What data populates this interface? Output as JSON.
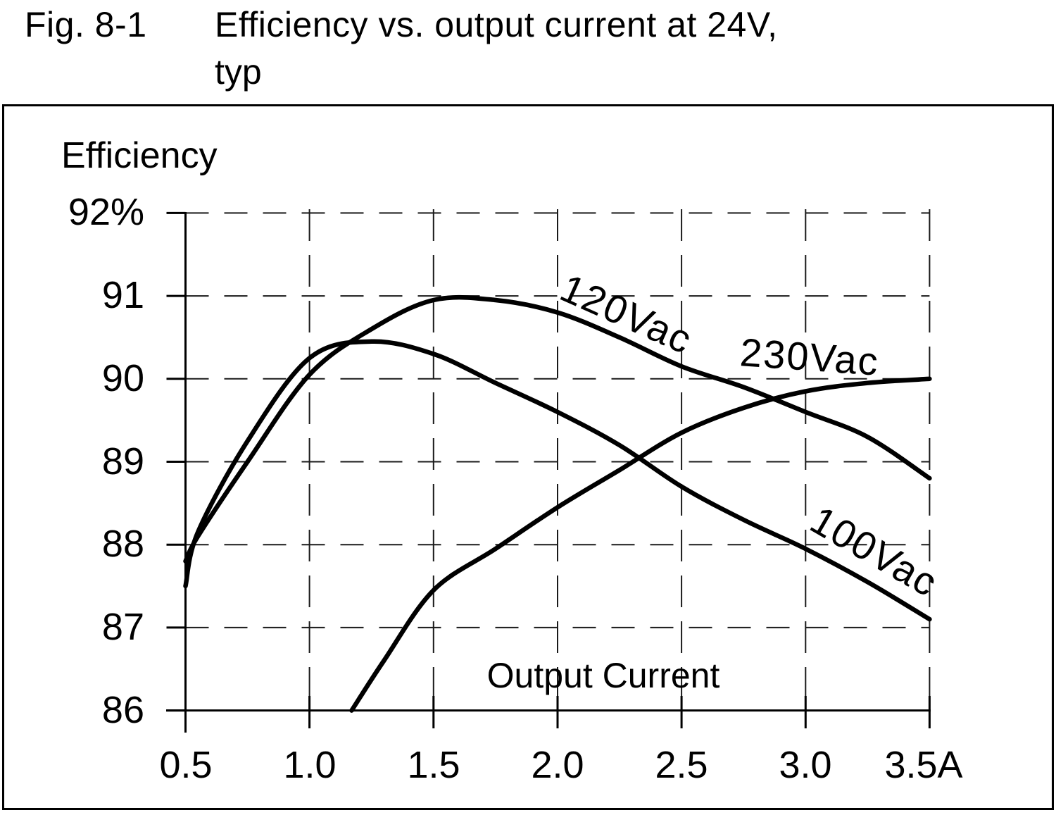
{
  "figure": {
    "fig_label": "Fig. 8-1",
    "title_line1": "Efficiency vs. output current at 24V,",
    "title_line2": "typ"
  },
  "chart_data": {
    "type": "line",
    "title": "Efficiency vs. output current at 24V, typ",
    "ylabel": "Efficiency",
    "xlabel": "Output Current",
    "xlim": [
      0.5,
      3.5
    ],
    "ylim": [
      86,
      92
    ],
    "x_unit": "A",
    "y_unit": "%",
    "grid": "dashed",
    "legend_position": "inline-rotated-labels",
    "line_color": "#000000",
    "x_ticks": [
      0.5,
      1.0,
      1.5,
      2.0,
      2.5,
      3.0,
      3.5
    ],
    "x_tick_labels": [
      "0.5",
      "1.0",
      "1.5",
      "2.0",
      "2.5",
      "3.0",
      "3.5A"
    ],
    "y_ticks": [
      86,
      87,
      88,
      89,
      90,
      91,
      92
    ],
    "y_tick_labels": [
      "86",
      "87",
      "88",
      "89",
      "90",
      "91",
      "92%"
    ],
    "series": [
      {
        "name": "120Vac",
        "points": [
          [
            0.5,
            87.8
          ],
          [
            0.55,
            88.1
          ],
          [
            0.75,
            89.0
          ],
          [
            1.0,
            90.05
          ],
          [
            1.25,
            90.6
          ],
          [
            1.5,
            90.95
          ],
          [
            1.75,
            90.95
          ],
          [
            2.0,
            90.8
          ],
          [
            2.25,
            90.5
          ],
          [
            2.5,
            90.15
          ],
          [
            2.75,
            89.9
          ],
          [
            3.0,
            89.6
          ],
          [
            3.25,
            89.3
          ],
          [
            3.5,
            88.8
          ]
        ]
      },
      {
        "name": "230Vac",
        "points": [
          [
            1.17,
            86.0
          ],
          [
            1.3,
            86.6
          ],
          [
            1.5,
            87.45
          ],
          [
            1.75,
            87.95
          ],
          [
            2.0,
            88.45
          ],
          [
            2.25,
            88.9
          ],
          [
            2.5,
            89.35
          ],
          [
            2.75,
            89.65
          ],
          [
            3.0,
            89.85
          ],
          [
            3.25,
            89.95
          ],
          [
            3.5,
            90.0
          ]
        ]
      },
      {
        "name": "100Vac",
        "points": [
          [
            0.5,
            87.5
          ],
          [
            0.55,
            88.15
          ],
          [
            0.75,
            89.25
          ],
          [
            1.0,
            90.25
          ],
          [
            1.25,
            90.45
          ],
          [
            1.5,
            90.3
          ],
          [
            1.75,
            89.95
          ],
          [
            2.0,
            89.6
          ],
          [
            2.25,
            89.2
          ],
          [
            2.5,
            88.7
          ],
          [
            2.75,
            88.3
          ],
          [
            3.0,
            87.95
          ],
          [
            3.25,
            87.55
          ],
          [
            3.5,
            87.1
          ]
        ]
      }
    ]
  }
}
